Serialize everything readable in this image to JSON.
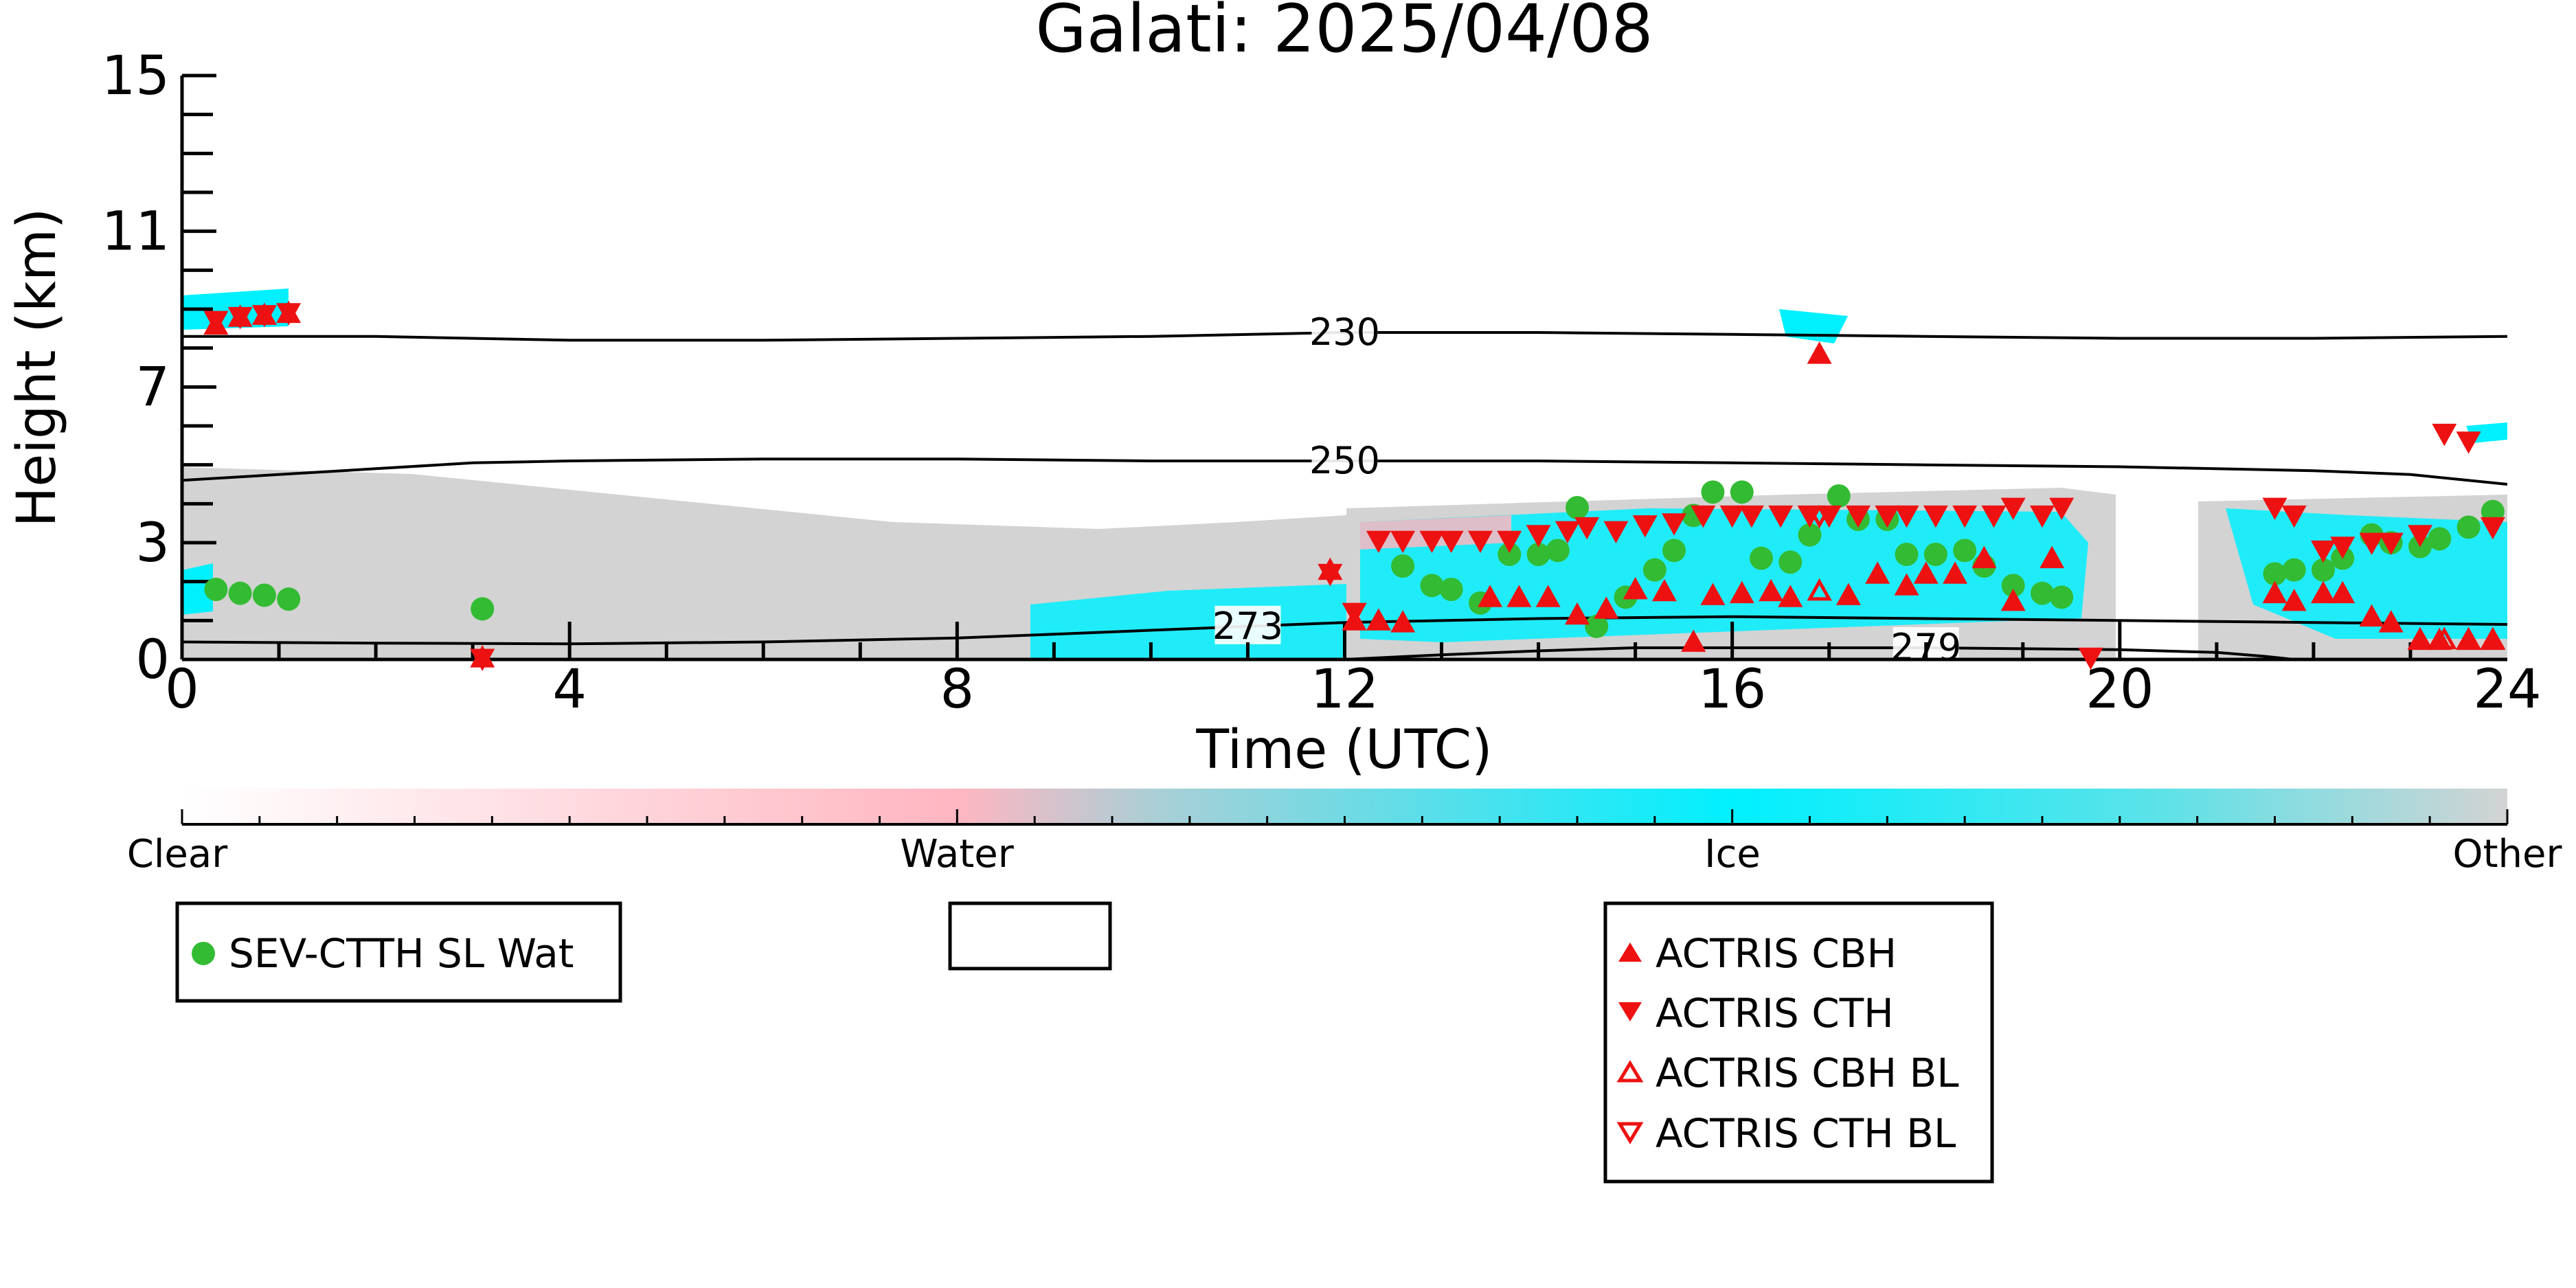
{
  "chart_data": {
    "type": "scatter",
    "title": "Galati: 2025/04/08",
    "xlabel": "Time (UTC)",
    "ylabel": "Height (km)",
    "xlim": [
      0,
      24
    ],
    "ylim": [
      0,
      15
    ],
    "x_ticks": [
      0,
      4,
      8,
      12,
      16,
      20,
      24
    ],
    "y_ticks": [
      0,
      3,
      7,
      11,
      15
    ],
    "colorbar": {
      "labels": [
        "Clear",
        "Water",
        "Ice",
        "Other"
      ],
      "colors": [
        "#ffffff",
        "#ffb6c1",
        "#00f0ff",
        "#d3d3d3"
      ]
    },
    "contours": [
      {
        "label": "230",
        "x": [
          0,
          2,
          4,
          6,
          8,
          10,
          12,
          14,
          16,
          18,
          20,
          22,
          24
        ],
        "y": [
          8.3,
          8.3,
          8.2,
          8.2,
          8.25,
          8.3,
          8.4,
          8.4,
          8.35,
          8.3,
          8.25,
          8.25,
          8.3
        ]
      },
      {
        "label": "250",
        "x": [
          0,
          1,
          2,
          3,
          4,
          6,
          8,
          10,
          12,
          14,
          16,
          18,
          20,
          22,
          23,
          24
        ],
        "y": [
          4.6,
          4.75,
          4.9,
          5.05,
          5.1,
          5.15,
          5.15,
          5.1,
          5.1,
          5.1,
          5.05,
          5.0,
          4.95,
          4.85,
          4.75,
          4.5
        ]
      },
      {
        "label": "273",
        "x": [
          0,
          2,
          4,
          6,
          8,
          9,
          10,
          11,
          12,
          14,
          16,
          18,
          20,
          22,
          24
        ],
        "y": [
          0.45,
          0.42,
          0.4,
          0.45,
          0.55,
          0.65,
          0.75,
          0.85,
          0.95,
          1.05,
          1.1,
          1.05,
          1.0,
          0.95,
          0.9
        ]
      },
      {
        "label": "279",
        "x": [
          12,
          13,
          14,
          15,
          16,
          18,
          20,
          21,
          21.5,
          21.8
        ],
        "y": [
          0.0,
          0.12,
          0.22,
          0.3,
          0.3,
          0.3,
          0.25,
          0.18,
          0.08,
          0.0
        ]
      }
    ],
    "series": [
      {
        "name": "SEV-CTTH SL Wat",
        "marker": "circle-filled",
        "color": "#33bb33",
        "x": [
          0.35,
          0.6,
          0.85,
          1.1,
          3.1,
          12.6,
          12.9,
          13.1,
          13.4,
          13.7,
          14.0,
          14.2,
          14.4,
          14.6,
          14.9,
          15.2,
          15.4,
          15.6,
          15.8,
          16.1,
          16.3,
          16.6,
          16.8,
          17.1,
          17.3,
          17.6,
          17.8,
          18.1,
          18.4,
          18.6,
          18.9,
          19.2,
          19.4,
          21.6,
          21.8,
          22.1,
          22.3,
          22.6,
          22.8,
          23.1,
          23.3,
          23.6,
          23.85
        ],
        "y": [
          1.8,
          1.7,
          1.65,
          1.55,
          1.3,
          2.4,
          1.9,
          1.8,
          1.45,
          2.7,
          2.7,
          2.8,
          3.9,
          0.85,
          1.6,
          2.3,
          2.8,
          3.7,
          4.3,
          4.3,
          2.6,
          2.5,
          3.2,
          4.2,
          3.6,
          3.6,
          2.7,
          2.7,
          2.8,
          2.4,
          1.9,
          1.7,
          1.6,
          2.2,
          2.3,
          2.3,
          2.6,
          3.2,
          3.0,
          2.9,
          3.1,
          3.4,
          3.8
        ]
      },
      {
        "name": "ACTRIS CBH",
        "marker": "triangle-up-filled",
        "color": "#ee1111",
        "x": [
          0.35,
          0.6,
          0.85,
          1.1,
          3.1,
          11.85,
          12.1,
          12.35,
          12.6,
          13.5,
          13.8,
          14.1,
          14.4,
          14.7,
          15.0,
          15.3,
          15.6,
          15.8,
          16.1,
          16.4,
          16.6,
          16.9,
          17.2,
          17.5,
          17.8,
          18.0,
          18.3,
          18.6,
          18.9,
          19.3,
          21.6,
          21.8,
          22.1,
          22.3,
          22.6,
          22.8,
          23.1,
          23.3,
          23.6,
          23.85
        ],
        "y": [
          8.6,
          8.8,
          8.85,
          8.9,
          0.05,
          2.3,
          1.0,
          1.0,
          0.95,
          1.6,
          1.6,
          1.6,
          1.15,
          1.3,
          1.8,
          1.75,
          0.45,
          1.65,
          1.7,
          1.75,
          1.6,
          7.85,
          1.65,
          2.2,
          1.9,
          2.2,
          2.2,
          2.6,
          1.5,
          2.6,
          1.7,
          1.5,
          1.7,
          1.7,
          1.1,
          0.95,
          0.5,
          0.5,
          0.5,
          0.5
        ]
      },
      {
        "name": "ACTRIS CTH",
        "marker": "triangle-down-filled",
        "color": "#ee1111",
        "x": [
          0.35,
          0.6,
          0.85,
          1.1,
          3.1,
          11.85,
          12.1,
          12.35,
          12.6,
          12.9,
          13.1,
          13.4,
          13.7,
          14.0,
          14.3,
          14.5,
          14.8,
          15.1,
          15.4,
          15.7,
          16.0,
          16.2,
          16.5,
          16.8,
          17.0,
          17.3,
          17.6,
          17.8,
          18.1,
          18.4,
          18.7,
          18.9,
          19.2,
          19.4,
          19.7,
          21.6,
          21.8,
          22.1,
          22.3,
          22.6,
          22.8,
          23.1,
          23.35,
          23.6,
          23.85
        ],
        "y": [
          8.7,
          8.8,
          8.85,
          8.9,
          0.02,
          2.2,
          1.2,
          3.05,
          3.05,
          3.05,
          3.05,
          3.05,
          3.05,
          3.2,
          3.3,
          3.4,
          3.3,
          3.45,
          3.5,
          3.7,
          3.7,
          3.7,
          3.7,
          3.7,
          3.7,
          3.7,
          3.7,
          3.7,
          3.7,
          3.7,
          3.7,
          3.9,
          3.7,
          3.9,
          0.05,
          3.9,
          3.7,
          2.8,
          2.9,
          3.0,
          3.0,
          3.2,
          5.8,
          5.6,
          3.4
        ]
      },
      {
        "name": "ACTRIS CBH BL",
        "marker": "triangle-up-open",
        "color": "#ee1111",
        "x": [
          16.9,
          23.1,
          23.35,
          23.6,
          23.85
        ],
        "y": [
          1.75,
          0.5,
          0.5,
          0.5,
          0.5
        ]
      },
      {
        "name": "ACTRIS CTH BL",
        "marker": "triangle-down-open",
        "color": "#ee1111",
        "x": [
          16.9
        ],
        "y": [
          3.7
        ]
      }
    ]
  },
  "legend_boxes": [
    {
      "entries": [
        0
      ]
    },
    {
      "entries": []
    },
    {
      "entries": [
        1,
        2,
        3,
        4
      ]
    }
  ]
}
